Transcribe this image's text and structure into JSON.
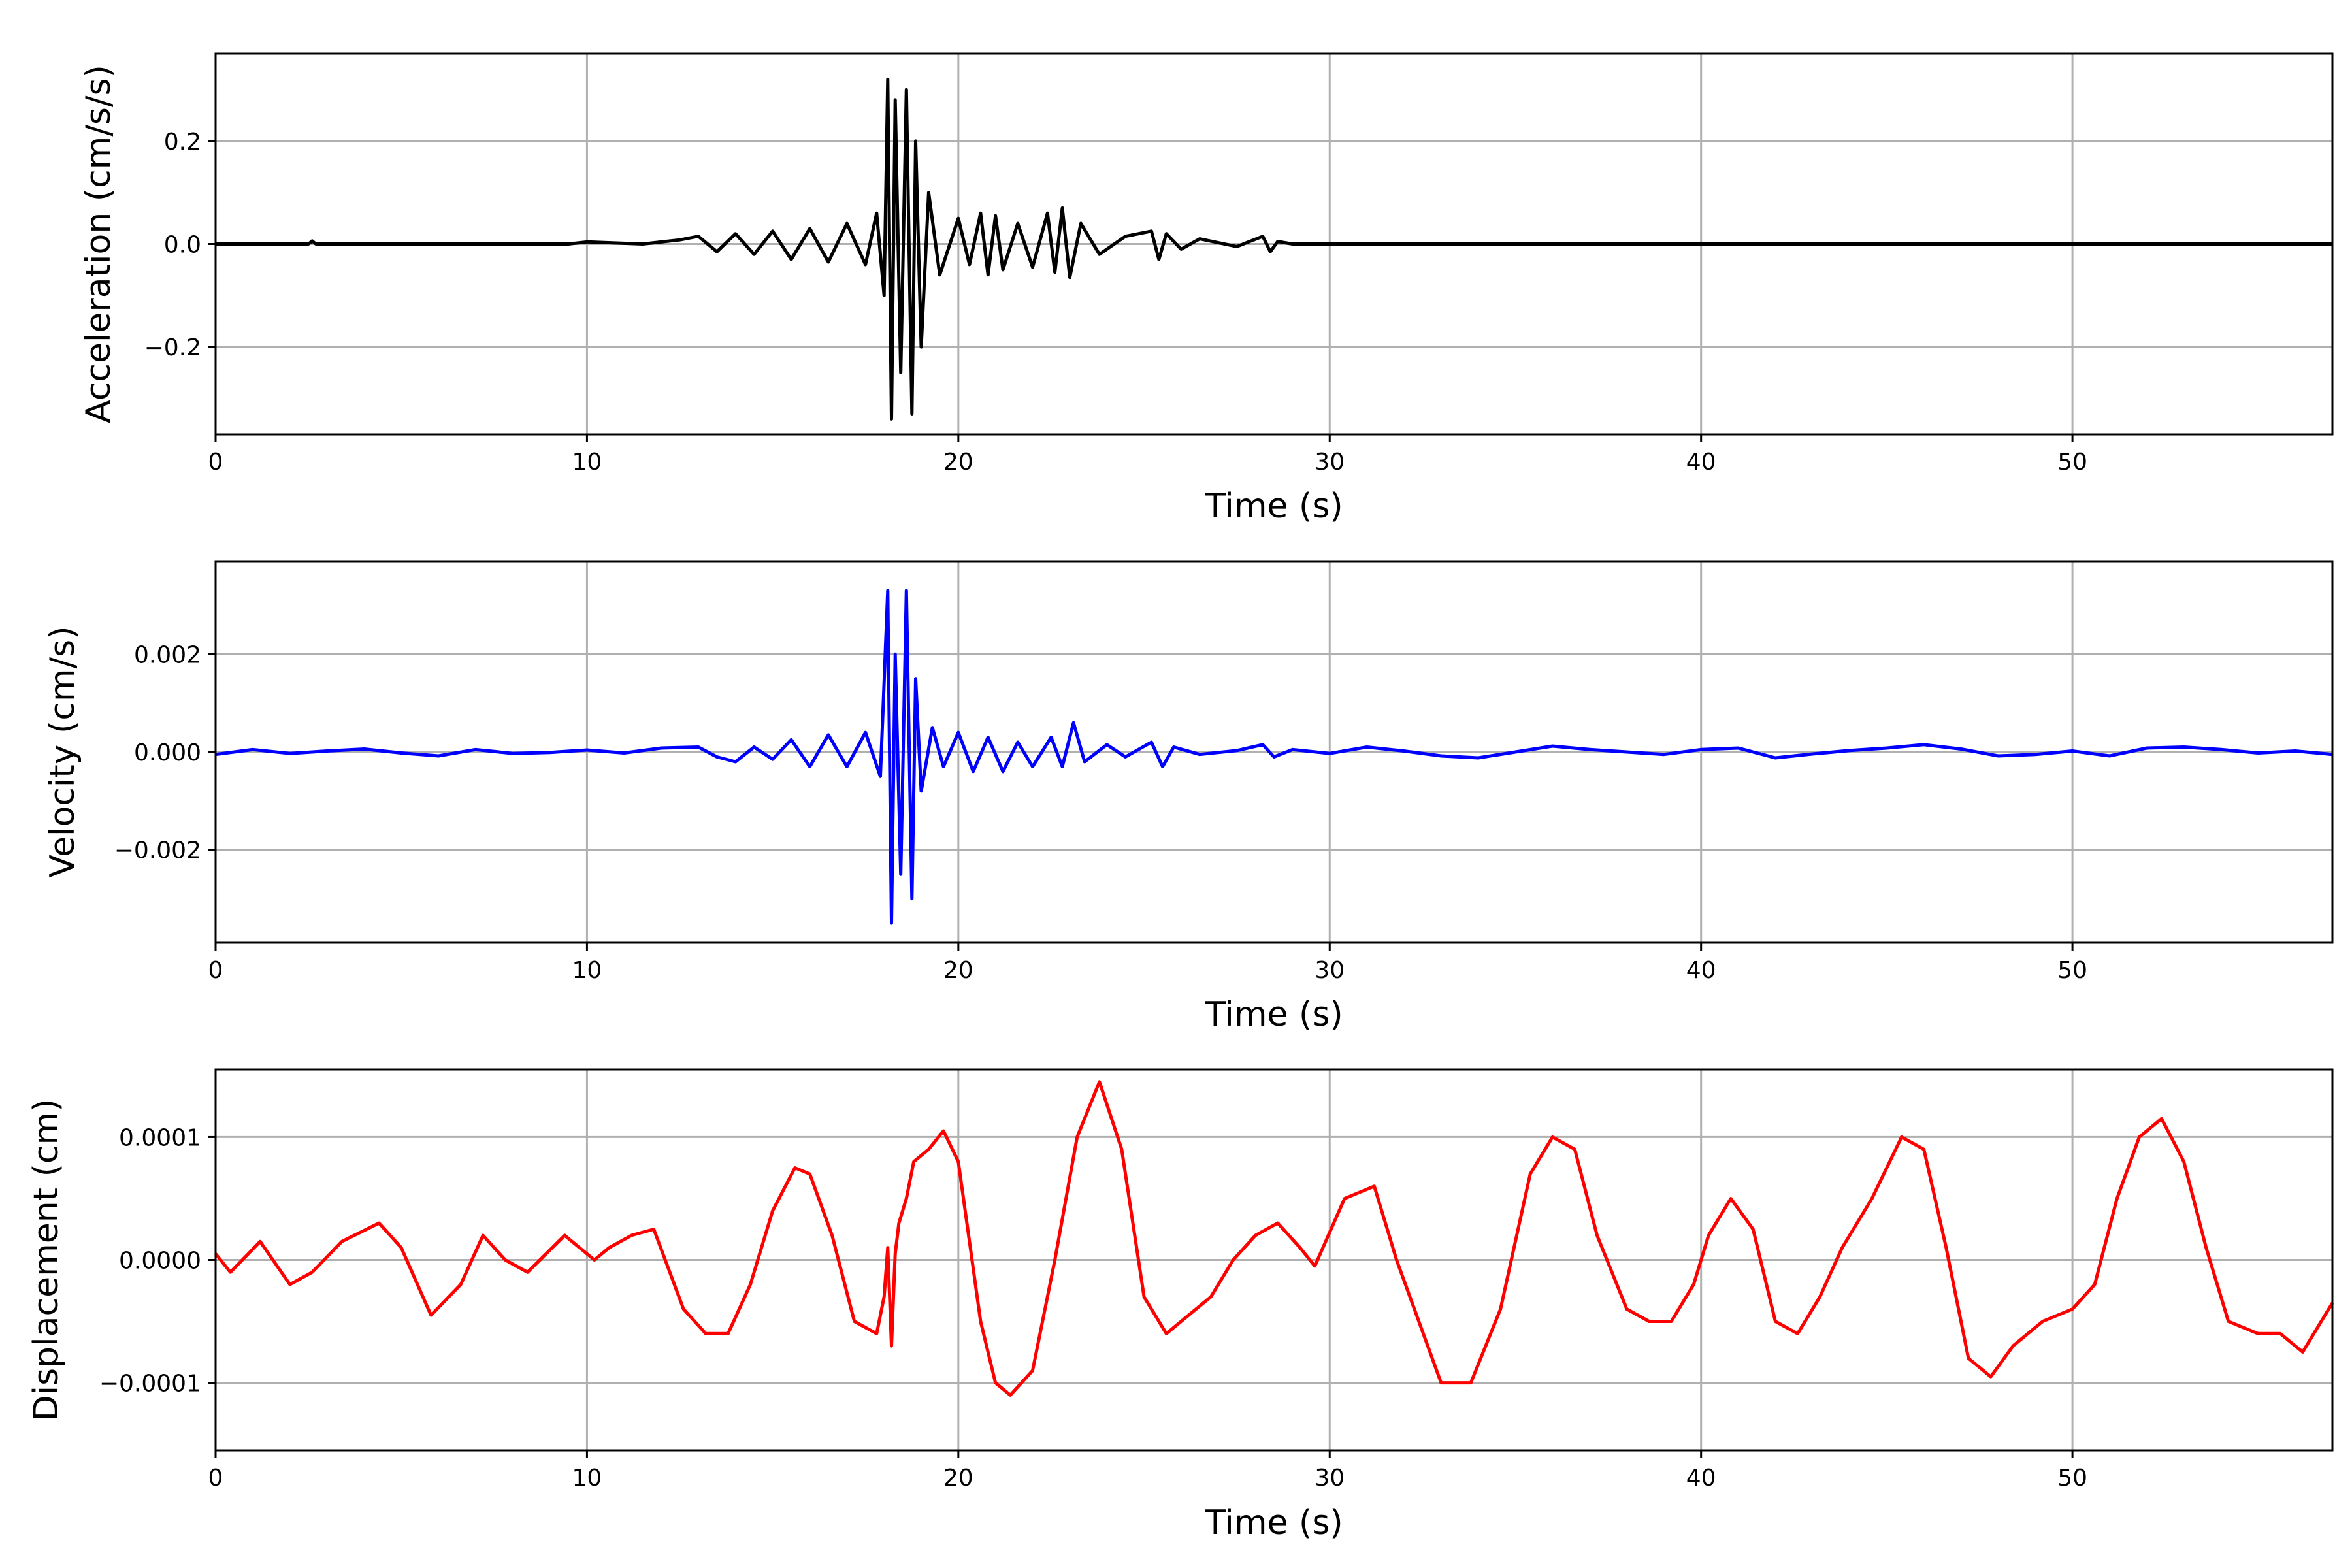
{
  "chart_data": [
    {
      "type": "line",
      "title": "",
      "xlabel": "Time (s)",
      "ylabel": "Acceleration (cm/s/s)",
      "xlim": [
        0,
        57
      ],
      "ylim": [
        -0.37,
        0.37
      ],
      "xticks": [
        0,
        10,
        20,
        30,
        40,
        50
      ],
      "xtick_labels": [
        "0",
        "10",
        "20",
        "30",
        "40",
        "50"
      ],
      "yticks": [
        -0.2,
        0.0,
        0.2
      ],
      "ytick_labels": [
        "−0.2",
        "0.0",
        "0.2"
      ],
      "grid": true,
      "legend": "none",
      "series": [
        {
          "color": "#000000",
          "x": [
            0,
            2.5,
            2.6,
            2.7,
            5,
            9.5,
            10,
            11.5,
            12.5,
            13,
            13.5,
            14,
            14.5,
            15,
            15.5,
            16,
            16.5,
            17,
            17.5,
            17.8,
            18.0,
            18.1,
            18.2,
            18.3,
            18.45,
            18.6,
            18.75,
            18.85,
            19.0,
            19.2,
            19.5,
            20.0,
            20.3,
            20.6,
            20.8,
            21.0,
            21.2,
            21.6,
            22.0,
            22.4,
            22.6,
            22.8,
            23.0,
            23.3,
            23.8,
            24.5,
            25.2,
            25.4,
            25.6,
            26.0,
            26.5,
            27.5,
            28.2,
            28.4,
            28.6,
            29.0,
            30.0,
            35,
            40,
            45,
            50,
            57
          ],
          "y": [
            0,
            0,
            0.006,
            0,
            0,
            0,
            0.004,
            0,
            0.008,
            0.015,
            -0.015,
            0.02,
            -0.02,
            0.025,
            -0.03,
            0.03,
            -0.035,
            0.04,
            -0.04,
            0.06,
            -0.1,
            0.32,
            -0.34,
            0.28,
            -0.25,
            0.3,
            -0.33,
            0.2,
            -0.2,
            0.1,
            -0.06,
            0.05,
            -0.04,
            0.06,
            -0.06,
            0.055,
            -0.05,
            0.04,
            -0.045,
            0.06,
            -0.055,
            0.07,
            -0.065,
            0.04,
            -0.02,
            0.015,
            0.025,
            -0.03,
            0.02,
            -0.01,
            0.01,
            -0.005,
            0.015,
            -0.015,
            0.005,
            0,
            0,
            0,
            0,
            0,
            0,
            0
          ]
        }
      ]
    },
    {
      "type": "line",
      "title": "",
      "xlabel": "Time (s)",
      "ylabel": "Velocity (cm/s)",
      "xlim": [
        0,
        57
      ],
      "ylim": [
        -0.0039,
        0.0039
      ],
      "xticks": [
        0,
        10,
        20,
        30,
        40,
        50
      ],
      "xtick_labels": [
        "0",
        "10",
        "20",
        "30",
        "40",
        "50"
      ],
      "yticks": [
        -0.002,
        0.0,
        0.002
      ],
      "ytick_labels": [
        "−0.002",
        "0.000",
        "0.002"
      ],
      "grid": true,
      "legend": "none",
      "series": [
        {
          "color": "#0000ff",
          "x": [
            0,
            1,
            2,
            3,
            4,
            5,
            6,
            7,
            8,
            9,
            10,
            11,
            12,
            13,
            13.5,
            14,
            14.5,
            15,
            15.5,
            16,
            16.5,
            17,
            17.5,
            17.9,
            18.1,
            18.2,
            18.3,
            18.45,
            18.6,
            18.75,
            18.85,
            19.0,
            19.3,
            19.6,
            20.0,
            20.4,
            20.8,
            21.2,
            21.6,
            22.0,
            22.5,
            22.8,
            23.1,
            23.4,
            24.0,
            24.5,
            25.2,
            25.5,
            25.8,
            26.5,
            27.5,
            28.2,
            28.5,
            29,
            30,
            31,
            32,
            33,
            34,
            35,
            36,
            37,
            38,
            39,
            40,
            41,
            42,
            43,
            44,
            45,
            46,
            47,
            48,
            49,
            50,
            51,
            52,
            53,
            54,
            55,
            56,
            57
          ],
          "y": [
            -5e-05,
            5e-05,
            -3e-05,
            2e-05,
            6e-05,
            -2e-05,
            -8e-05,
            5e-05,
            -3e-05,
            -1e-05,
            4e-05,
            -2e-05,
            8e-05,
            0.0001,
            -0.0001,
            -0.0002,
            0.0001,
            -0.00015,
            0.00025,
            -0.0003,
            0.00035,
            -0.0003,
            0.0004,
            -0.0005,
            0.0033,
            -0.0035,
            0.002,
            -0.0025,
            0.0033,
            -0.003,
            0.0015,
            -0.0008,
            0.0005,
            -0.0003,
            0.0004,
            -0.0004,
            0.0003,
            -0.0004,
            0.0002,
            -0.0003,
            0.0003,
            -0.0003,
            0.0006,
            -0.0002,
            0.00015,
            -0.0001,
            0.0002,
            -0.0003,
            0.0001,
            -5e-05,
            3e-05,
            0.00015,
            -0.0001,
            5e-05,
            -3e-05,
            0.0001,
            2e-05,
            -8e-05,
            -0.00012,
            0.0,
            0.00012,
            5e-05,
            0.0,
            -5e-05,
            5e-05,
            8e-05,
            -0.00012,
            -4e-05,
            3e-05,
            8e-05,
            0.00015,
            6e-05,
            -8e-05,
            -5e-05,
            2e-05,
            -8e-05,
            8e-05,
            0.0001,
            5e-05,
            -2e-05,
            2e-05,
            -5e-05
          ]
        }
      ]
    },
    {
      "type": "line",
      "title": "",
      "xlabel": "Time (s)",
      "ylabel": "Displacement (cm)",
      "xlim": [
        0,
        57
      ],
      "ylim": [
        -0.000155,
        0.000155
      ],
      "xticks": [
        0,
        10,
        20,
        30,
        40,
        50
      ],
      "xtick_labels": [
        "0",
        "10",
        "20",
        "30",
        "40",
        "50"
      ],
      "yticks": [
        -0.0001,
        0.0,
        0.0001
      ],
      "ytick_labels": [
        "−0.0001",
        "0.0000",
        "0.0001"
      ],
      "grid": true,
      "legend": "none",
      "series": [
        {
          "color": "#ff0000",
          "x": [
            0,
            0.4,
            1.2,
            2.0,
            2.6,
            3.4,
            4.4,
            5.0,
            5.8,
            6.6,
            7.2,
            7.8,
            8.4,
            9.4,
            10.2,
            10.6,
            11.2,
            11.8,
            12.6,
            13.2,
            13.8,
            14.4,
            15.0,
            15.6,
            16.0,
            16.6,
            17.2,
            17.8,
            18.0,
            18.1,
            18.2,
            18.3,
            18.4,
            18.6,
            18.8,
            19.2,
            19.6,
            20.0,
            20.6,
            21.0,
            21.4,
            22.0,
            22.6,
            23.2,
            23.8,
            24.4,
            25.0,
            25.6,
            26.2,
            26.8,
            27.4,
            28.0,
            28.6,
            29.2,
            29.6,
            30.4,
            31.2,
            31.8,
            32.4,
            33.0,
            33.8,
            34.6,
            35.4,
            36.0,
            36.6,
            37.2,
            38.0,
            38.6,
            39.2,
            39.8,
            40.2,
            40.8,
            41.4,
            42.0,
            42.6,
            43.2,
            43.8,
            44.6,
            45.4,
            46.0,
            46.6,
            47.2,
            47.8,
            48.4,
            49.2,
            50.0,
            50.6,
            51.2,
            51.8,
            52.4,
            53.0,
            53.6,
            54.2,
            55.0,
            55.6,
            56.2,
            57.0
          ],
          "y": [
            5e-06,
            -1e-05,
            1.5e-05,
            -2e-05,
            -1e-05,
            1.5e-05,
            3e-05,
            1e-05,
            -4.5e-05,
            -2e-05,
            2e-05,
            0.0,
            -1e-05,
            2e-05,
            0.0,
            1e-05,
            2e-05,
            2.5e-05,
            -4e-05,
            -6e-05,
            -6e-05,
            -2e-05,
            4e-05,
            7.5e-05,
            7e-05,
            2e-05,
            -5e-05,
            -6e-05,
            -3e-05,
            1e-05,
            -7e-05,
            5e-06,
            3e-05,
            5e-05,
            8e-05,
            9e-05,
            0.000105,
            8e-05,
            -5e-05,
            -0.0001,
            -0.00011,
            -9e-05,
            0.0,
            0.0001,
            0.000145,
            9e-05,
            -3e-05,
            -6e-05,
            -4.5e-05,
            -3e-05,
            0.0,
            2e-05,
            3e-05,
            1e-05,
            -5e-06,
            5e-05,
            6e-05,
            0.0,
            -5e-05,
            -0.0001,
            -0.0001,
            -4e-05,
            7e-05,
            0.0001,
            9e-05,
            2e-05,
            -4e-05,
            -5e-05,
            -5e-05,
            -2e-05,
            2e-05,
            5e-05,
            2.5e-05,
            -5e-05,
            -6e-05,
            -3e-05,
            1e-05,
            5e-05,
            0.0001,
            9e-05,
            1e-05,
            -8e-05,
            -9.5e-05,
            -7e-05,
            -5e-05,
            -4e-05,
            -2e-05,
            5e-05,
            0.0001,
            0.000115,
            8e-05,
            1e-05,
            -5e-05,
            -6e-05,
            -6e-05,
            -7.5e-05,
            -3.5e-05
          ]
        }
      ]
    }
  ]
}
